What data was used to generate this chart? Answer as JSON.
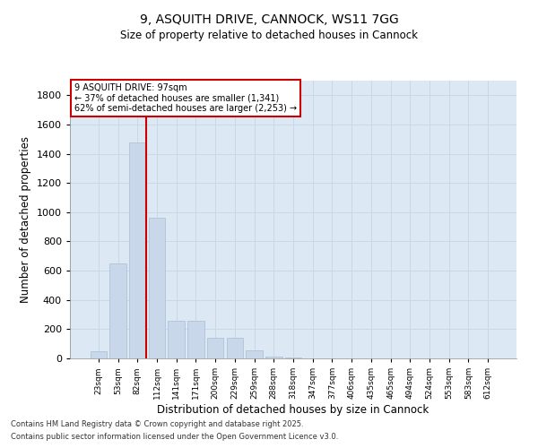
{
  "title1": "9, ASQUITH DRIVE, CANNOCK, WS11 7GG",
  "title2": "Size of property relative to detached houses in Cannock",
  "xlabel": "Distribution of detached houses by size in Cannock",
  "ylabel": "Number of detached properties",
  "categories": [
    "23sqm",
    "53sqm",
    "82sqm",
    "112sqm",
    "141sqm",
    "171sqm",
    "200sqm",
    "229sqm",
    "259sqm",
    "288sqm",
    "318sqm",
    "347sqm",
    "377sqm",
    "406sqm",
    "435sqm",
    "465sqm",
    "494sqm",
    "524sqm",
    "553sqm",
    "583sqm",
    "612sqm"
  ],
  "values": [
    50,
    650,
    1480,
    960,
    260,
    260,
    140,
    140,
    55,
    15,
    5,
    2,
    1,
    0,
    0,
    0,
    0,
    0,
    0,
    0,
    0
  ],
  "bar_color": "#c8d8ea",
  "bar_edge_color": "#aabfd0",
  "grid_color": "#c8d8e8",
  "bg_color": "#dce8f4",
  "annotation_text": "9 ASQUITH DRIVE: 97sqm\n← 37% of detached houses are smaller (1,341)\n62% of semi-detached houses are larger (2,253) →",
  "annotation_box_color": "#cc0000",
  "vline_x_index": 2,
  "ylim": [
    0,
    1900
  ],
  "yticks": [
    0,
    200,
    400,
    600,
    800,
    1000,
    1200,
    1400,
    1600,
    1800
  ],
  "footnote1": "Contains HM Land Registry data © Crown copyright and database right 2025.",
  "footnote2": "Contains public sector information licensed under the Open Government Licence v3.0."
}
